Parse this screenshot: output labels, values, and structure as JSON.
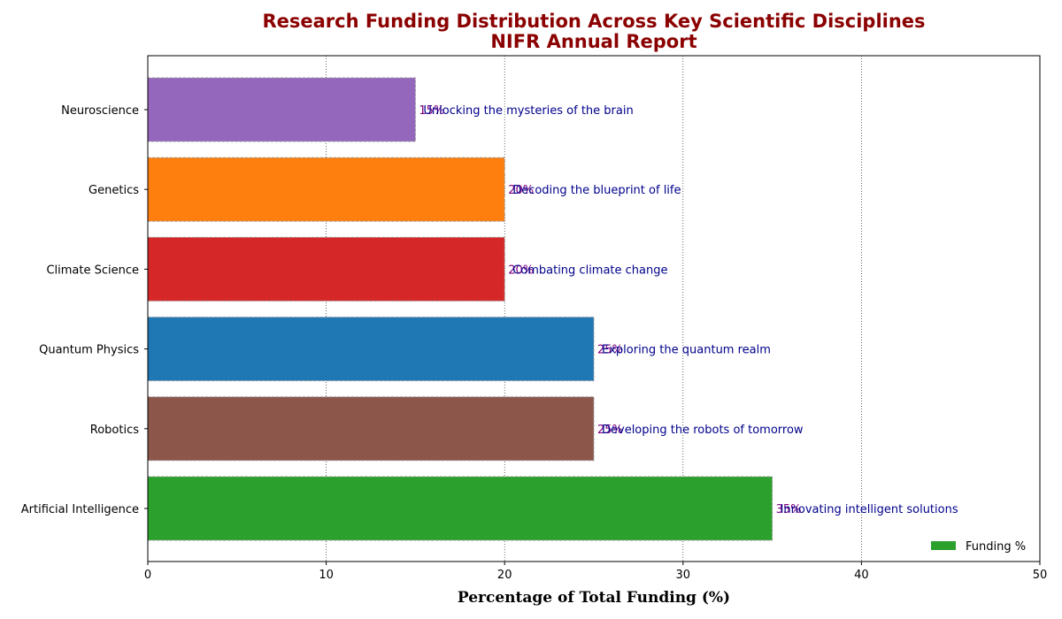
{
  "chart_data": {
    "type": "bar",
    "orientation": "horizontal",
    "title": "Research Funding Distribution Across Key Scientific Disciplines",
    "subtitle": "NIFR Annual Report",
    "xlabel": "Percentage of Total Funding (%)",
    "xlim": [
      0,
      50
    ],
    "xticks": [
      0,
      10,
      20,
      30,
      40,
      50
    ],
    "grid": "x, dotted",
    "legend": {
      "label": "Funding %",
      "placement": "bottom-right",
      "color": "#2ca02c"
    },
    "bars": [
      {
        "category": "Artificial Intelligence",
        "value": 35,
        "label": "35%",
        "annotation": "Innovating intelligent solutions",
        "color": "#2ca02c"
      },
      {
        "category": "Robotics",
        "value": 25,
        "label": "25%",
        "annotation": "Developing the robots of tomorrow",
        "color": "#8c564b"
      },
      {
        "category": "Quantum Physics",
        "value": 25,
        "label": "25%",
        "annotation": "Exploring the quantum realm",
        "color": "#1f77b4"
      },
      {
        "category": "Climate Science",
        "value": 20,
        "label": "20%",
        "annotation": "Combating climate change",
        "color": "#d62728"
      },
      {
        "category": "Genetics",
        "value": 20,
        "label": "20%",
        "annotation": "Decoding the blueprint of life",
        "color": "#ff7f0e"
      },
      {
        "category": "Neuroscience",
        "value": 15,
        "label": "15%",
        "annotation": "Unlocking the mysteries of the brain",
        "color": "#9467bd"
      }
    ]
  }
}
